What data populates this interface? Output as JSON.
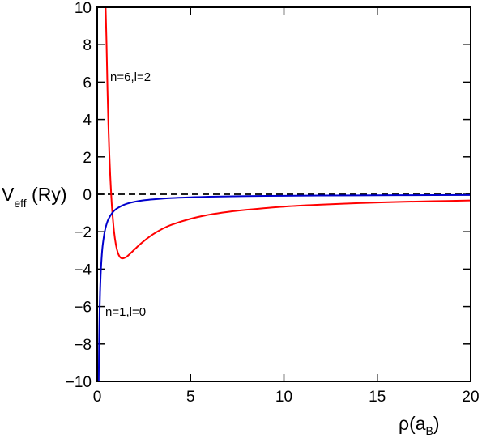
{
  "chart_data": {
    "type": "line",
    "title": "",
    "xlabel": {
      "main": "ρ(a",
      "sub": "B",
      "tail": ")"
    },
    "ylabel": {
      "main": "V",
      "sub": "eff",
      "tail": " (Ry)"
    },
    "xlim": [
      0,
      20
    ],
    "ylim": [
      -10,
      10
    ],
    "x_ticks": [
      0,
      5,
      10,
      15,
      20
    ],
    "y_ticks": [
      -10,
      -8,
      -6,
      -4,
      -2,
      0,
      2,
      4,
      6,
      8,
      10
    ],
    "grid": false,
    "legend": "none",
    "reference_line": {
      "y": 0,
      "style": "dashed",
      "color": "#000000"
    },
    "series": [
      {
        "label": "n=6,l=2",
        "color": "#ff0000",
        "x": [
          0.45,
          0.5,
          0.55,
          0.6,
          0.65,
          0.7,
          0.75,
          0.8,
          0.9,
          1.0,
          1.1,
          1.2,
          1.3,
          1.4,
          1.5,
          1.6,
          1.8,
          2.0,
          2.3,
          2.6,
          3.0,
          3.5,
          4.0,
          5.0,
          6.0,
          7.0,
          8.0,
          10.0,
          12.0,
          14.0,
          16.0,
          18.0,
          20.0
        ],
        "y": [
          10.0,
          8.0,
          5.59,
          3.67,
          2.15,
          0.94,
          -0.04,
          -0.83,
          -1.98,
          -2.69,
          -3.11,
          -3.33,
          -3.42,
          -3.42,
          -3.38,
          -3.32,
          -3.14,
          -2.95,
          -2.67,
          -2.42,
          -2.13,
          -1.84,
          -1.62,
          -1.31,
          -1.09,
          -0.94,
          -0.83,
          -0.66,
          -0.55,
          -0.47,
          -0.41,
          -0.37,
          -0.33
        ]
      },
      {
        "label": "n=1,l=0",
        "color": "#0000cc",
        "x": [
          0.08,
          0.1,
          0.13,
          0.16,
          0.2,
          0.25,
          0.3,
          0.4,
          0.5,
          0.6,
          0.8,
          1.0,
          1.3,
          1.6,
          2.0,
          2.5,
          3.0,
          4.0,
          5.0,
          6.0,
          8.0,
          10.0,
          12.0,
          15.0,
          18.0,
          20.0
        ],
        "y": [
          -10.0,
          -8.0,
          -6.15,
          -5.0,
          -4.0,
          -3.2,
          -2.67,
          -2.0,
          -1.6,
          -1.33,
          -1.0,
          -0.8,
          -0.62,
          -0.5,
          -0.4,
          -0.32,
          -0.27,
          -0.2,
          -0.16,
          -0.13,
          -0.1,
          -0.08,
          -0.067,
          -0.053,
          -0.044,
          -0.04
        ]
      }
    ]
  }
}
